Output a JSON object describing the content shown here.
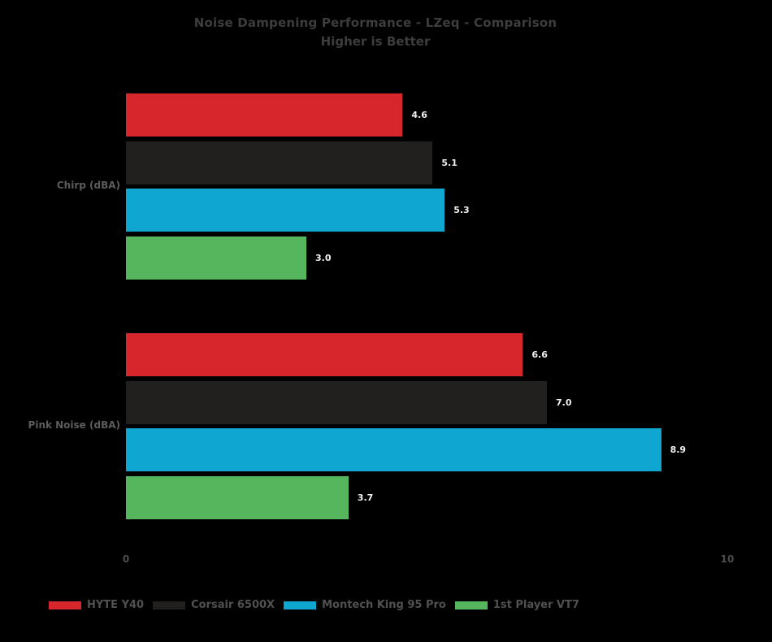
{
  "chart_data": {
    "type": "bar",
    "orientation": "horizontal",
    "title": "Noise Dampening Performance - LZeq - Comparison",
    "subtitle": "Higher is Better",
    "categories": [
      "Chirp (dBA)",
      "Pink Noise (dBA)"
    ],
    "series": [
      {
        "name": "HYTE Y40",
        "color": "#d7262c",
        "values": [
          4.6,
          6.6
        ]
      },
      {
        "name": "Corsair 6500X",
        "color": "#221f1f",
        "values": [
          5.1,
          7.0
        ]
      },
      {
        "name": "Montech King 95 Pro",
        "color": "#0fa6d2",
        "values": [
          5.3,
          8.9
        ]
      },
      {
        "name": "1st Player VT7",
        "color": "#56b65e",
        "values": [
          3.0,
          3.7
        ]
      }
    ],
    "value_label_decimals": 1,
    "xlim": [
      0,
      10
    ],
    "x_ticks": [
      {
        "label": "0",
        "value": 0
      },
      {
        "label": "10",
        "value": 10
      }
    ],
    "grid": false,
    "legend_position": "bottom-left",
    "background_color": "#000000",
    "title_color": "#3d3d3d",
    "value_label_color": "#f0f0f0"
  }
}
